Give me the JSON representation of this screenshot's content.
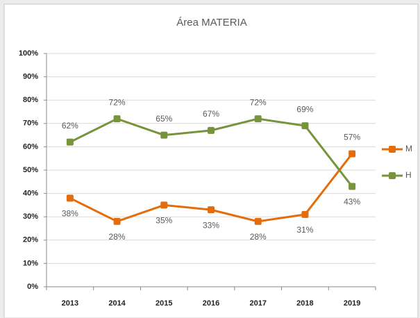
{
  "chart_data": {
    "type": "line",
    "title": "Área MATERIA",
    "categories": [
      "2013",
      "2014",
      "2015",
      "2016",
      "2017",
      "2018",
      "2019"
    ],
    "series": [
      {
        "name": "M",
        "color": "#e46c0a",
        "values": [
          38,
          28,
          35,
          33,
          28,
          31,
          57
        ],
        "value_labels": [
          "38%",
          "28%",
          "35%",
          "33%",
          "28%",
          "31%",
          "57%"
        ]
      },
      {
        "name": "H",
        "color": "#77933c",
        "values": [
          62,
          72,
          65,
          67,
          72,
          69,
          43
        ],
        "value_labels": [
          "62%",
          "72%",
          "65%",
          "67%",
          "72%",
          "69%",
          "43%"
        ]
      }
    ],
    "ylim": [
      0,
      100
    ],
    "yticks": [
      {
        "value": 0,
        "label": "0%"
      },
      {
        "value": 10,
        "label": "10%"
      },
      {
        "value": 20,
        "label": "20%"
      },
      {
        "value": 30,
        "label": "30%"
      },
      {
        "value": 40,
        "label": "40%"
      },
      {
        "value": 50,
        "label": "50%"
      },
      {
        "value": 60,
        "label": "60%"
      },
      {
        "value": 70,
        "label": "70%"
      },
      {
        "value": 80,
        "label": "80%"
      },
      {
        "value": 90,
        "label": "90%"
      },
      {
        "value": 100,
        "label": "100%"
      }
    ],
    "grid": true,
    "legend": "right"
  }
}
